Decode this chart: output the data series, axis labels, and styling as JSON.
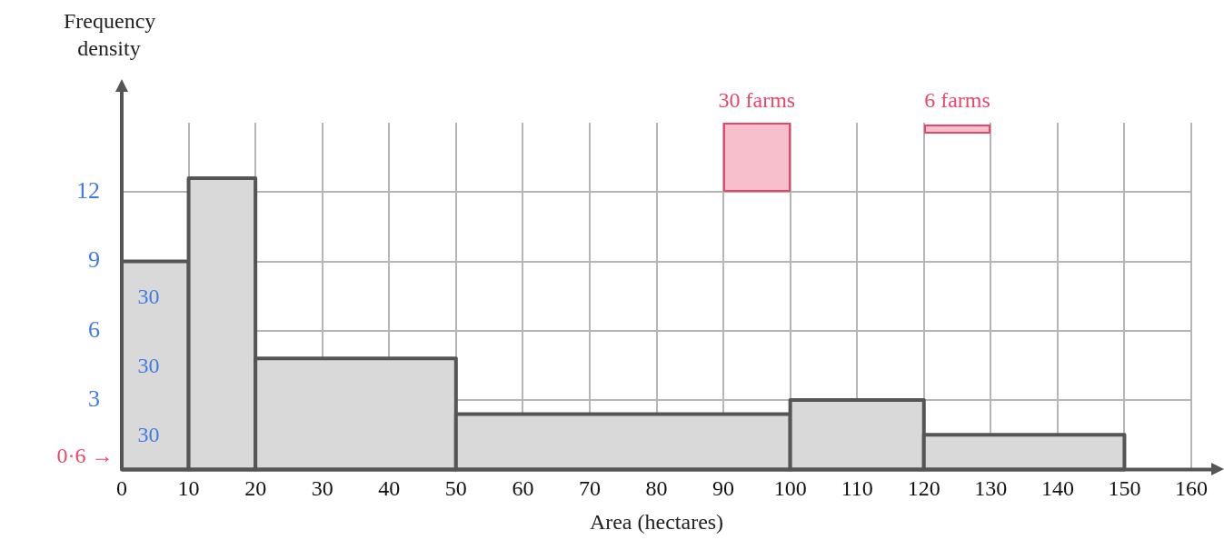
{
  "chart_data": {
    "type": "histogram",
    "xlabel": "Area (hectares)",
    "ylabel": "Frequency density",
    "bins": [
      0,
      10,
      20,
      50,
      100,
      120,
      150
    ],
    "values": [
      9,
      12.6,
      4.8,
      2.4,
      3.0,
      1.5
    ],
    "color": "#d9d9d9",
    "xlim": [
      0,
      160
    ],
    "xticks": [
      0,
      10,
      20,
      30,
      40,
      50,
      60,
      70,
      80,
      90,
      100,
      110,
      120,
      130,
      140,
      150,
      160
    ],
    "ylim": [
      0,
      15
    ],
    "yticks": [
      3,
      6,
      9,
      12
    ],
    "grid": true,
    "annotations": [
      "30 farms",
      "6 farms",
      "30",
      "30",
      "30",
      "0·6 →"
    ]
  }
}
